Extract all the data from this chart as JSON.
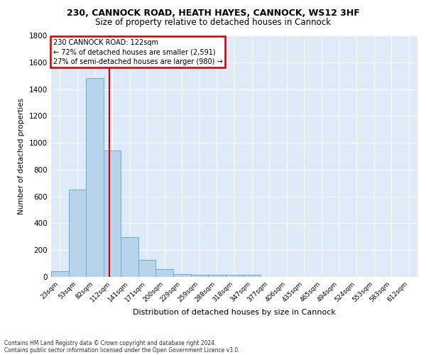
{
  "title1": "230, CANNOCK ROAD, HEATH HAYES, CANNOCK, WS12 3HF",
  "title2": "Size of property relative to detached houses in Cannock",
  "xlabel": "Distribution of detached houses by size in Cannock",
  "ylabel": "Number of detached properties",
  "categories": [
    "23sqm",
    "53sqm",
    "82sqm",
    "112sqm",
    "141sqm",
    "171sqm",
    "200sqm",
    "229sqm",
    "259sqm",
    "288sqm",
    "318sqm",
    "347sqm",
    "377sqm",
    "406sqm",
    "435sqm",
    "465sqm",
    "494sqm",
    "524sqm",
    "553sqm",
    "583sqm",
    "612sqm"
  ],
  "values": [
    40,
    650,
    1480,
    940,
    295,
    125,
    60,
    20,
    15,
    15,
    15,
    15,
    0,
    0,
    0,
    0,
    0,
    0,
    0,
    0,
    0
  ],
  "bar_color": "#b8d4ea",
  "bar_edge_color": "#6aaed6",
  "annotation_text": "230 CANNOCK ROAD: 122sqm\n← 72% of detached houses are smaller (2,591)\n27% of semi-detached houses are larger (980) →",
  "annotation_box_color": "#ffffff",
  "annotation_box_edge_color": "#cc0000",
  "footer_text1": "Contains HM Land Registry data © Crown copyright and database right 2024.",
  "footer_text2": "Contains public sector information licensed under the Open Government Licence v3.0.",
  "ylim": [
    0,
    1800
  ],
  "yticks": [
    0,
    200,
    400,
    600,
    800,
    1000,
    1200,
    1400,
    1600,
    1800
  ],
  "bg_color": "#deeaf7",
  "fig_bg_color": "#ffffff",
  "grid_color": "#ffffff",
  "red_line_color": "#cc0000"
}
